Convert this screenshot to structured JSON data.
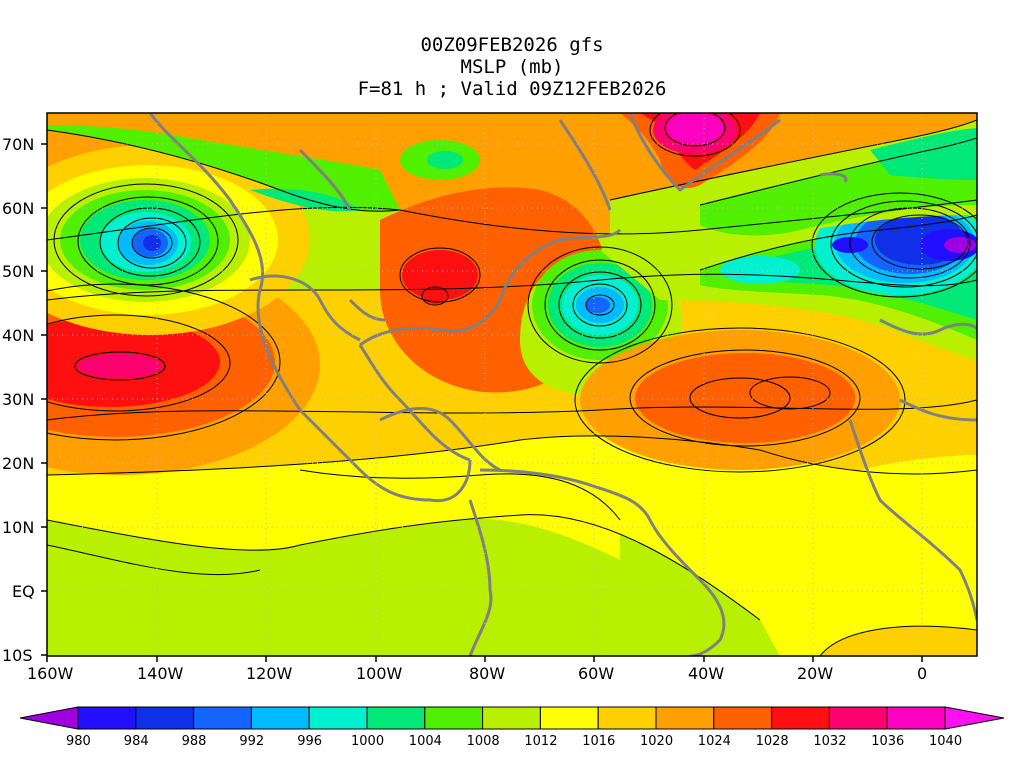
{
  "header": {
    "line1": "00Z09FEB2026 gfs",
    "line2": "MSLP (mb)",
    "line3": "F=81 h ; Valid 09Z12FEB2026"
  },
  "axes": {
    "lat_labels": [
      "70N",
      "60N",
      "50N",
      "40N",
      "30N",
      "20N",
      "10N",
      "EQ",
      "10S"
    ],
    "lon_labels": [
      "160W",
      "140W",
      "120W",
      "100W",
      "80W",
      "60W",
      "40W",
      "20W",
      "0"
    ]
  },
  "colorbar": {
    "labels": [
      "980",
      "984",
      "988",
      "992",
      "996",
      "1000",
      "1004",
      "1008",
      "1012",
      "1016",
      "1020",
      "1024",
      "1028",
      "1032",
      "1036",
      "1040"
    ],
    "colors": [
      "#a000e0",
      "#2010ff",
      "#1030e8",
      "#1464ff",
      "#00bbff",
      "#00f0d0",
      "#00e878",
      "#50f000",
      "#b8f000",
      "#ffff00",
      "#ffd000",
      "#ffa000",
      "#ff6000",
      "#ff1010",
      "#ff0070",
      "#ff00c0",
      "#ff10f0"
    ]
  },
  "systems": {
    "lows": [
      "Gulf of Alaska low",
      "Western Atlantic low",
      "Northeast Atlantic low"
    ],
    "highs": [
      "Subtropical Pacific high",
      "Central US high",
      "Azores high",
      "Greenland high"
    ]
  }
}
